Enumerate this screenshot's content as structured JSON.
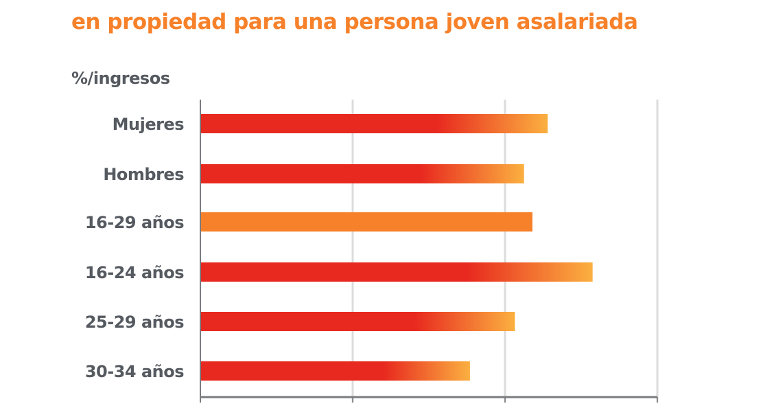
{
  "chart_data": {
    "type": "bar",
    "orientation": "horizontal",
    "title": "en propiedad para una persona joven asalariada",
    "ylabel": "%/ingresos",
    "categories": [
      "Mujeres",
      "Hombres",
      "16-29 años",
      "16-24 años",
      "25-29 años",
      "30-34 años"
    ],
    "values": [
      45.6,
      42.5,
      43.6,
      51.5,
      41.3,
      35.4
    ],
    "xlim": [
      0,
      60
    ],
    "gridlines": [
      0,
      20,
      40,
      60
    ],
    "tick_labels_shown": false,
    "grid": true,
    "colors": {
      "bar": "#e8291f",
      "bar_gradient_end": "#fbb040",
      "highlight": "#f7812a",
      "title": "#f7812a",
      "text": "#555a60"
    },
    "highlighted_category": "16-29 años"
  }
}
